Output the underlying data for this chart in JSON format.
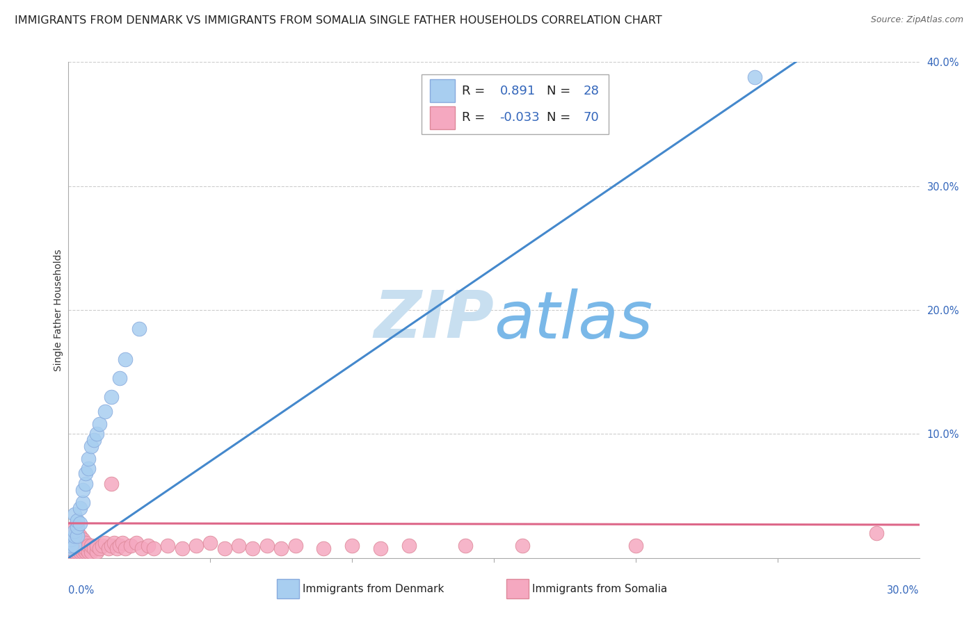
{
  "title": "IMMIGRANTS FROM DENMARK VS IMMIGRANTS FROM SOMALIA SINGLE FATHER HOUSEHOLDS CORRELATION CHART",
  "source": "Source: ZipAtlas.com",
  "ylabel": "Single Father Households",
  "xlim": [
    0.0,
    0.3
  ],
  "ylim": [
    0.0,
    0.4
  ],
  "denmark_color": "#a8cef0",
  "denmark_edge": "#88aadd",
  "somalia_color": "#f5a8c0",
  "somalia_edge": "#dd8899",
  "denmark_line_color": "#4488cc",
  "somalia_line_color": "#dd6688",
  "legend_color": "#3366bb",
  "watermark_color": "#c8dff0",
  "background_color": "#ffffff",
  "grid_color": "#cccccc",
  "title_fontsize": 11.5,
  "axis_label_fontsize": 10,
  "tick_fontsize": 10.5,
  "legend_fontsize": 14,
  "dk_x": [
    0.001,
    0.001,
    0.001,
    0.002,
    0.002,
    0.002,
    0.002,
    0.003,
    0.003,
    0.003,
    0.004,
    0.004,
    0.005,
    0.005,
    0.006,
    0.006,
    0.007,
    0.007,
    0.008,
    0.009,
    0.01,
    0.011,
    0.013,
    0.015,
    0.018,
    0.02,
    0.025,
    0.242
  ],
  "dk_y": [
    0.008,
    0.01,
    0.015,
    0.01,
    0.018,
    0.022,
    0.035,
    0.018,
    0.025,
    0.03,
    0.028,
    0.04,
    0.045,
    0.055,
    0.06,
    0.068,
    0.072,
    0.08,
    0.09,
    0.095,
    0.1,
    0.108,
    0.118,
    0.13,
    0.145,
    0.16,
    0.185,
    0.388
  ],
  "so_x": [
    0.001,
    0.001,
    0.001,
    0.001,
    0.001,
    0.002,
    0.002,
    0.002,
    0.002,
    0.002,
    0.002,
    0.002,
    0.003,
    0.003,
    0.003,
    0.003,
    0.003,
    0.003,
    0.004,
    0.004,
    0.004,
    0.004,
    0.005,
    0.005,
    0.005,
    0.005,
    0.006,
    0.006,
    0.006,
    0.007,
    0.007,
    0.008,
    0.008,
    0.009,
    0.01,
    0.01,
    0.011,
    0.012,
    0.013,
    0.014,
    0.015,
    0.016,
    0.017,
    0.018,
    0.019,
    0.02,
    0.022,
    0.024,
    0.026,
    0.028,
    0.03,
    0.035,
    0.04,
    0.045,
    0.05,
    0.055,
    0.06,
    0.065,
    0.07,
    0.075,
    0.08,
    0.09,
    0.1,
    0.11,
    0.12,
    0.14,
    0.16,
    0.2,
    0.285,
    0.015
  ],
  "so_y": [
    0.005,
    0.008,
    0.01,
    0.012,
    0.018,
    0.005,
    0.008,
    0.012,
    0.015,
    0.018,
    0.022,
    0.025,
    0.005,
    0.008,
    0.01,
    0.015,
    0.018,
    0.022,
    0.005,
    0.008,
    0.012,
    0.018,
    0.005,
    0.008,
    0.01,
    0.015,
    0.005,
    0.008,
    0.012,
    0.005,
    0.01,
    0.005,
    0.01,
    0.008,
    0.005,
    0.01,
    0.008,
    0.01,
    0.012,
    0.008,
    0.01,
    0.012,
    0.008,
    0.01,
    0.012,
    0.008,
    0.01,
    0.012,
    0.008,
    0.01,
    0.008,
    0.01,
    0.008,
    0.01,
    0.012,
    0.008,
    0.01,
    0.008,
    0.01,
    0.008,
    0.01,
    0.008,
    0.01,
    0.008,
    0.01,
    0.01,
    0.01,
    0.01,
    0.02,
    0.06
  ],
  "dk_slope": 1.56,
  "dk_intercept": 0.0,
  "so_slope": -0.004,
  "so_intercept": 0.028
}
